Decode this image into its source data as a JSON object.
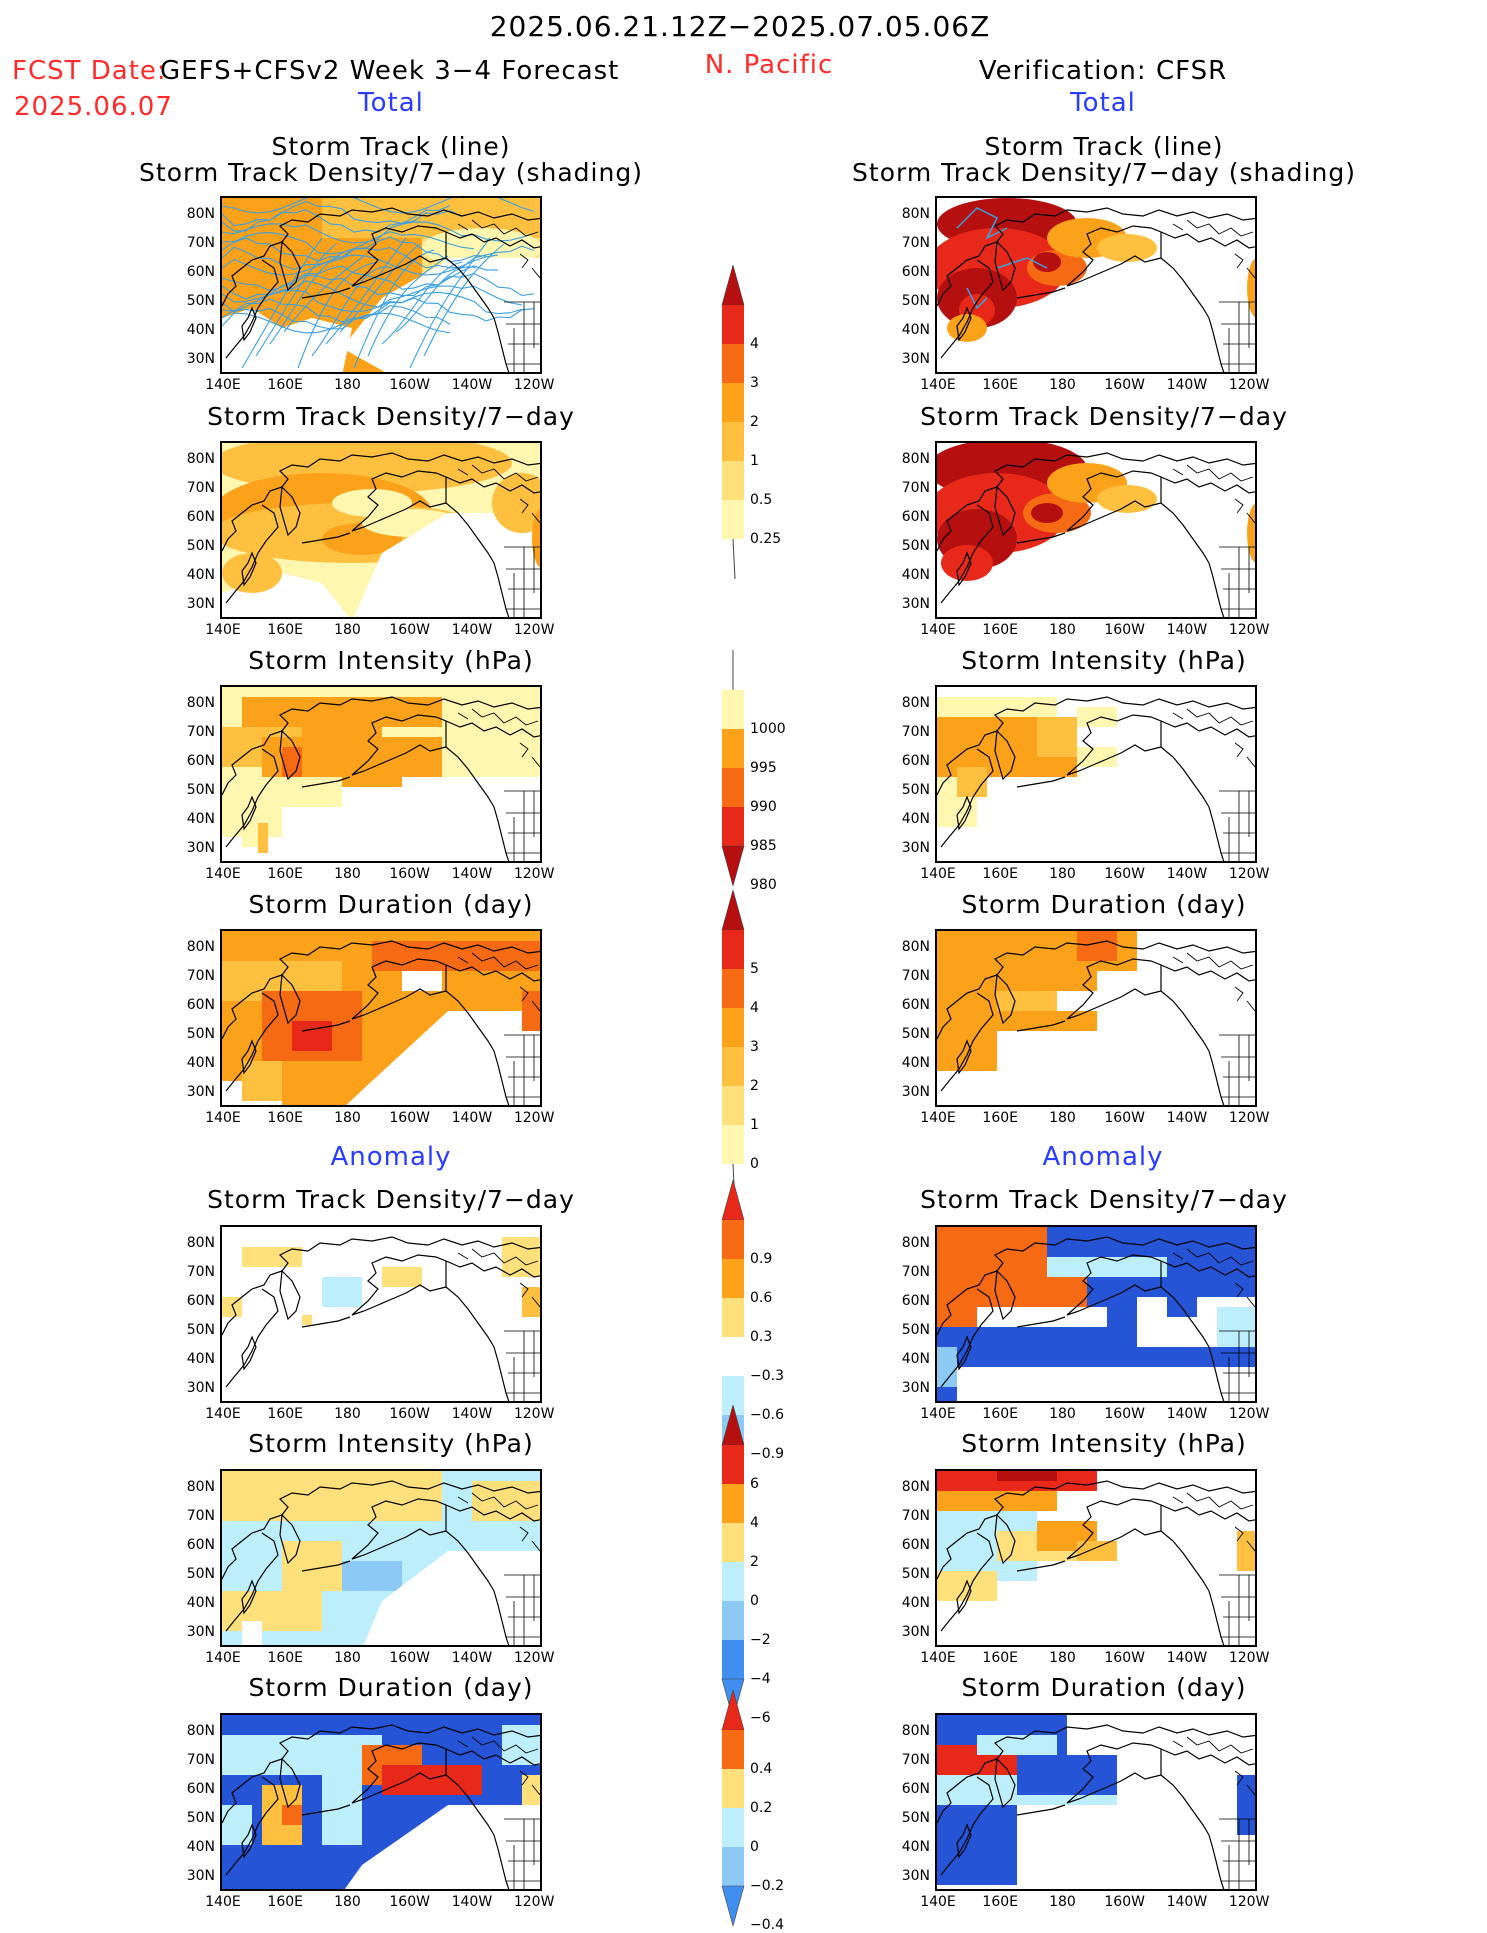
{
  "header": {
    "period": "2025.06.21.12Z−2025.07.05.06Z",
    "fcst_label": "FCST Date:",
    "fcst_date": "2025.06.07",
    "model": "GEFS+CFSv2 Week 3−4 Forecast",
    "region": "N. Pacific",
    "verification": "Verification: CFSR",
    "left_total": "Total",
    "right_total": "Total",
    "left_anomaly": "Anomaly",
    "right_anomaly": "Anomaly"
  },
  "axes": {
    "lat_labels": [
      "80N",
      "70N",
      "60N",
      "50N",
      "40N",
      "30N"
    ],
    "lon_labels": [
      "140E",
      "160E",
      "180",
      "160W",
      "140W",
      "120W"
    ]
  },
  "panels": {
    "track_line_title": "Storm Track (line)",
    "track_shading_title": "Storm Track Density/7−day (shading)",
    "density_title": "Storm Track Density/7−day",
    "intensity_title": "Storm Intensity (hPa)",
    "duration_title": "Storm Duration (day)"
  },
  "colorbars": {
    "density": [
      "4",
      "3",
      "2",
      "1",
      "0.5",
      "0.25"
    ],
    "intensity": [
      "1000",
      "995",
      "990",
      "985",
      "980"
    ],
    "duration": [
      "5",
      "4",
      "3",
      "2",
      "1",
      "0"
    ],
    "density_anom": [
      "0.9",
      "0.6",
      "0.3",
      "−0.3",
      "−0.6",
      "−0.9"
    ],
    "intensity_anom": [
      "6",
      "4",
      "2",
      "0",
      "−2",
      "−4",
      "−6"
    ],
    "duration_anom": [
      "0.4",
      "0.2",
      "0",
      "−0.2",
      "−0.4"
    ]
  },
  "colors": {
    "pale_yellow": "#fff6b0",
    "light_yellow": "#ffe07a",
    "yellow_orange": "#ffc040",
    "orange": "#fba21a",
    "dark_orange": "#f56a12",
    "red": "#e8291a",
    "dark_red": "#b5100f",
    "light_blue": "#bdeefc",
    "mid_blue": "#8ccaf5",
    "blue": "#3f8ef0",
    "dark_blue": "#2555d6",
    "track_line": "#3aa0e0"
  }
}
